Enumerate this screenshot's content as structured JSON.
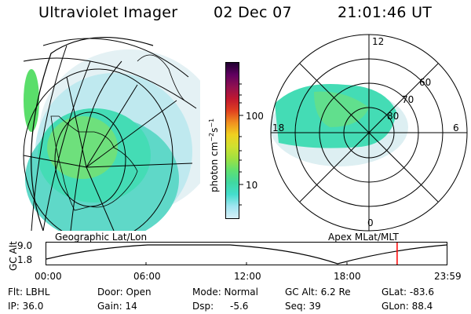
{
  "header": {
    "title": "Ultraviolet Imager",
    "date": "02 Dec 07",
    "time": "21:01:46 UT"
  },
  "geo_panel": {
    "label": "Geographic Lat/Lon"
  },
  "polar_panel": {
    "label": "Apex MLat/MLT",
    "mlt_labels": [
      "12",
      "18",
      "6",
      "0"
    ],
    "mlat_labels": [
      "60",
      "70",
      "80"
    ]
  },
  "colorbar": {
    "unit_label": "photon cm",
    "unit_exp1": "−2",
    "unit_mid": "s",
    "unit_exp2": "−1",
    "ticks": [
      "100",
      "10"
    ],
    "colors": [
      "#d8f0f8",
      "#9fe5f0",
      "#44ddcc",
      "#40d8a0",
      "#60e070",
      "#a0e040",
      "#d0e030",
      "#f0d020",
      "#f09020",
      "#e04020",
      "#c01830",
      "#901050",
      "#600060",
      "#200030"
    ]
  },
  "orbit_plot": {
    "ylabel": "GC Alt",
    "yticks": [
      "9.0",
      "1.8"
    ],
    "xticks": [
      "00:00",
      "06:00",
      "12:00",
      "18:00",
      "23:59"
    ],
    "marker_hour": 21.03,
    "marker_color": "#ff0000"
  },
  "info": {
    "filter": "Flt: LBHL",
    "door": "Door: Open",
    "mode": "Mode: Normal",
    "gc_alt": "GC Alt: 6.2 Re",
    "glat": "GLat: -83.6",
    "ip": "IP: 36.0",
    "gain": "Gain: 14",
    "dsp_label": "Dsp:",
    "dsp_value": "-5.6",
    "seq": "Seq: 39",
    "glon": "GLon: 88.4"
  }
}
